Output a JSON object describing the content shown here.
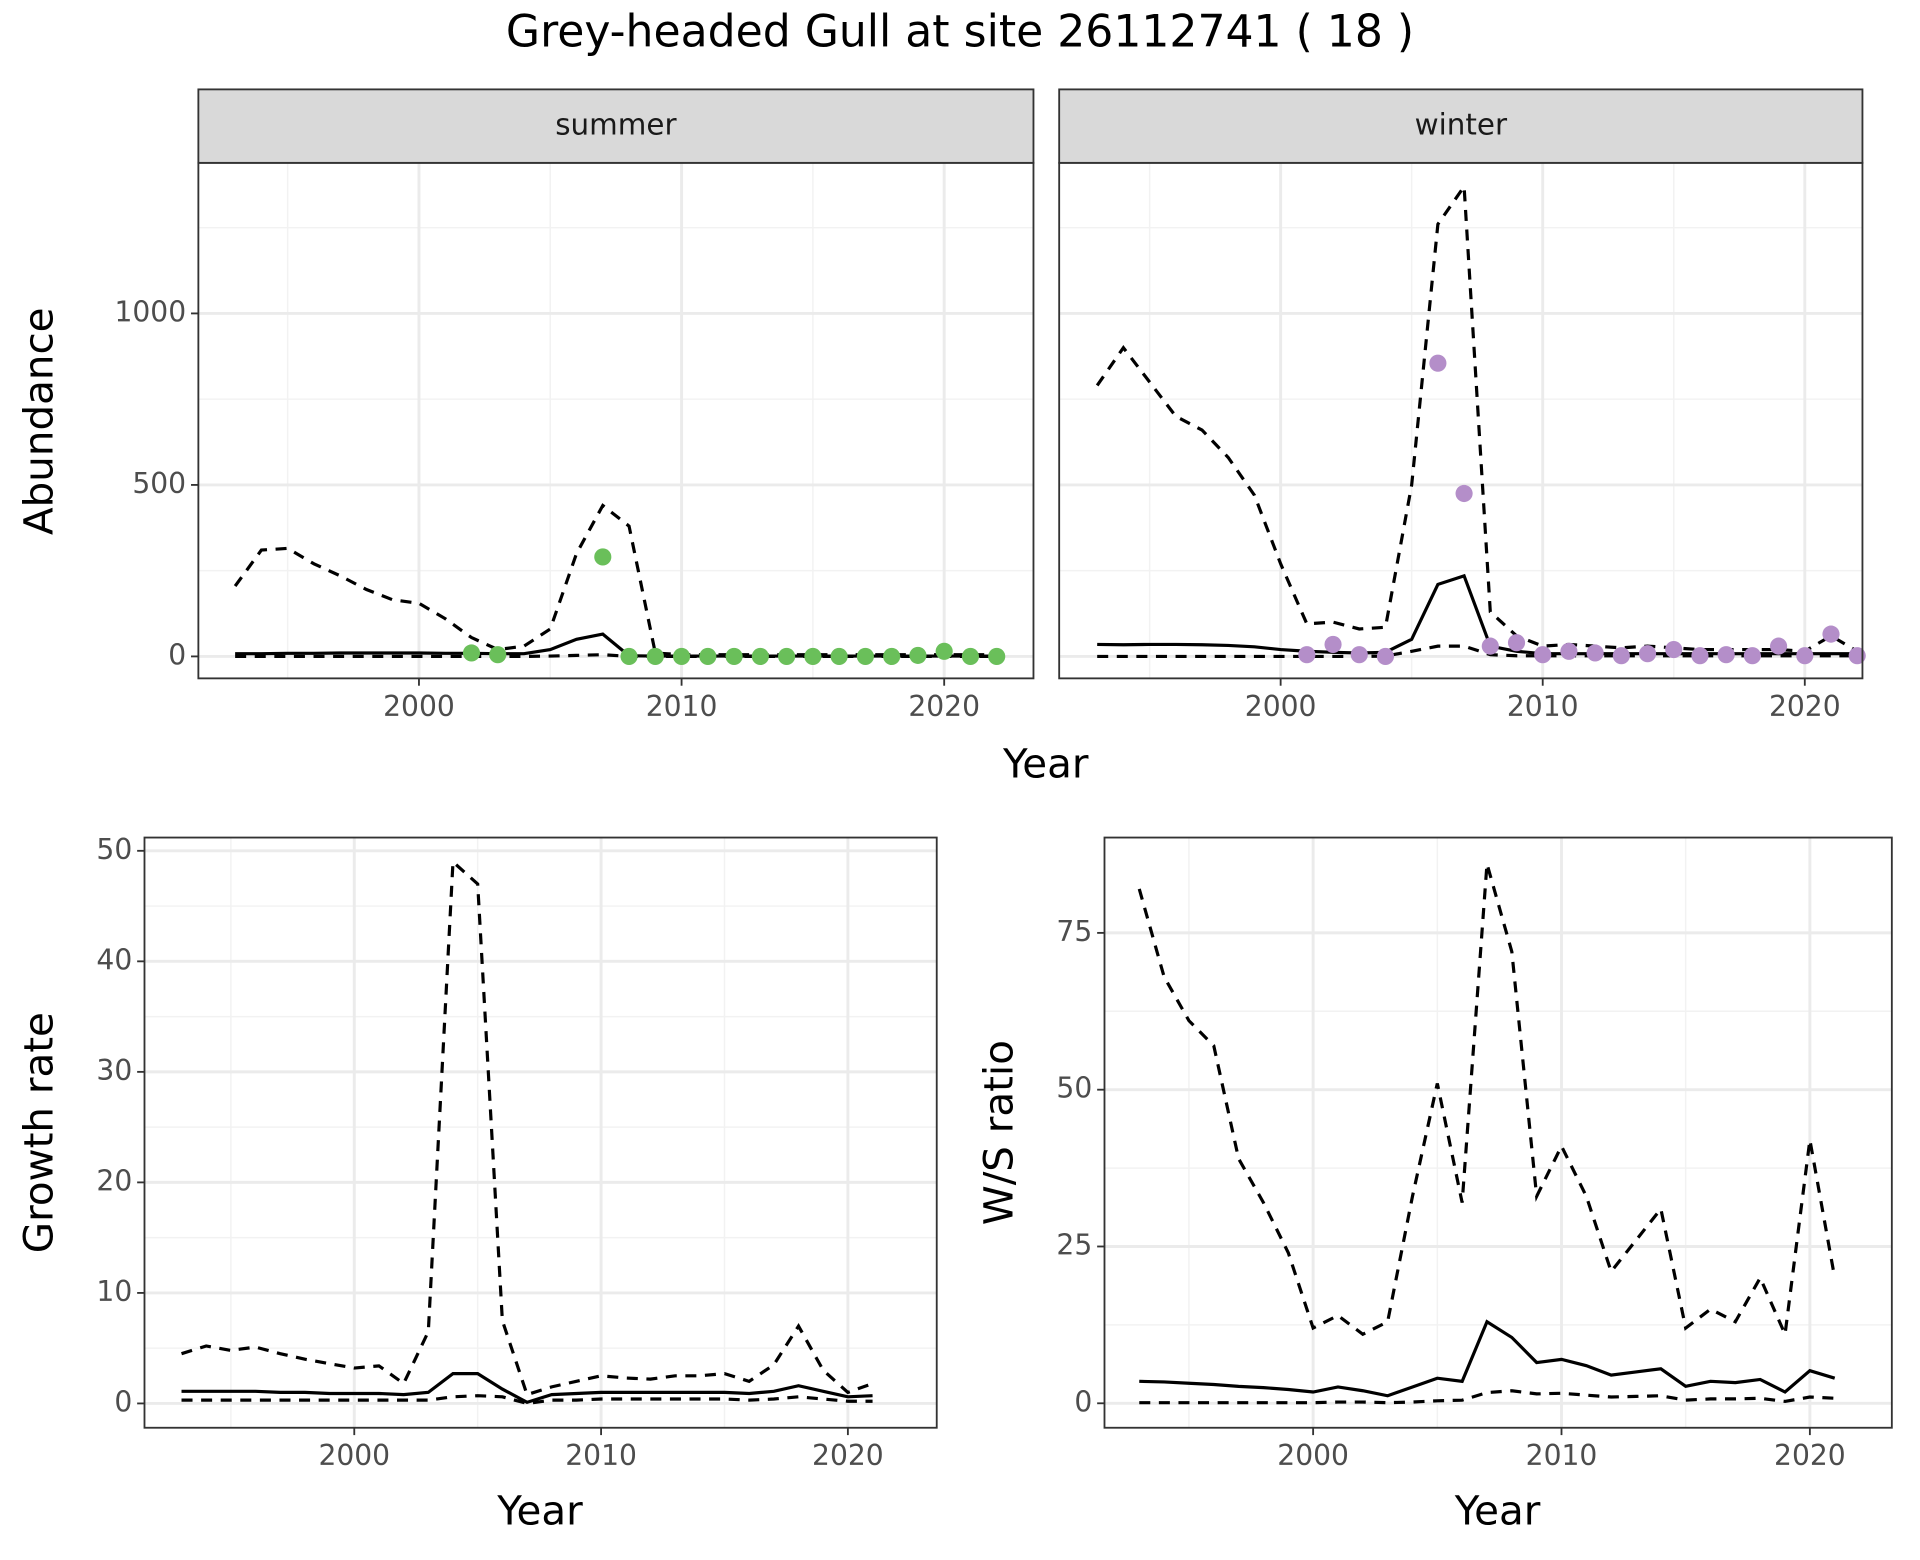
{
  "title": "Grey-headed Gull at site 26112741 ( 18 )",
  "chart_data": [
    {
      "type": "line",
      "facet": "summer",
      "y_label": "Abundance",
      "x_label": "Year",
      "xlim": [
        1991.6,
        2023.4
      ],
      "ylim": [
        -64,
        1439
      ],
      "xticks": [
        2000,
        2010,
        2020
      ],
      "yticks": [
        0,
        500,
        1000
      ],
      "xminor": [
        1995,
        2005,
        2015
      ],
      "yminor": [
        250,
        750,
        1250
      ],
      "grid": true,
      "show_yticklabels": true,
      "x": [
        1993,
        1994,
        1995,
        1996,
        1997,
        1998,
        1999,
        2000,
        2001,
        2002,
        2003,
        2004,
        2005,
        2006,
        2007,
        2008,
        2009,
        2010,
        2011,
        2012,
        2013,
        2014,
        2015,
        2016,
        2017,
        2018,
        2019,
        2020,
        2021,
        2022
      ],
      "series": [
        {
          "line_style": "dashed",
          "color": "#000000",
          "values": [
            205,
            310,
            315,
            270,
            235,
            195,
            165,
            155,
            110,
            55,
            20,
            30,
            80,
            300,
            440,
            380,
            10,
            5,
            5,
            5,
            5,
            5,
            5,
            5,
            5,
            5,
            5,
            5,
            5,
            5
          ]
        },
        {
          "line_style": "solid",
          "color": "#000000",
          "values": [
            8,
            8,
            9,
            9,
            10,
            10,
            10,
            10,
            9,
            9,
            8,
            8,
            20,
            50,
            65,
            2,
            1,
            1,
            1,
            1,
            1,
            1,
            1,
            1,
            1,
            1,
            1,
            1,
            1,
            1
          ]
        },
        {
          "line_style": "dashed",
          "color": "#000000",
          "values": [
            0,
            0,
            0,
            0,
            0,
            0,
            0,
            0,
            0,
            0,
            0,
            0,
            1,
            3,
            5,
            0,
            0,
            0,
            0,
            0,
            0,
            0,
            0,
            0,
            0,
            0,
            0,
            0,
            0,
            0
          ]
        },
        {
          "line_style": "points",
          "color": "#6abf5a",
          "values": [
            null,
            null,
            null,
            null,
            null,
            null,
            null,
            null,
            null,
            10,
            5,
            null,
            null,
            null,
            290,
            0,
            0,
            0,
            0,
            0,
            0,
            0,
            0,
            0,
            0,
            0,
            3,
            15,
            0,
            0
          ]
        }
      ]
    },
    {
      "type": "line",
      "facet": "winter",
      "xlim": [
        1991.55,
        2022.2
      ],
      "ylim": [
        -64,
        1439
      ],
      "xticks": [
        2000,
        2010,
        2020
      ],
      "yticks": [
        0,
        500,
        1000
      ],
      "xminor": [
        1995,
        2005,
        2015
      ],
      "yminor": [
        250,
        750,
        1250
      ],
      "grid": true,
      "show_yticklabels": false,
      "x": [
        1993,
        1994,
        1995,
        1996,
        1997,
        1998,
        1999,
        2000,
        2001,
        2002,
        2003,
        2004,
        2005,
        2006,
        2007,
        2008,
        2009,
        2010,
        2011,
        2012,
        2013,
        2014,
        2015,
        2016,
        2017,
        2018,
        2019,
        2020,
        2021,
        2022
      ],
      "series": [
        {
          "line_style": "dashed",
          "color": "#000000",
          "values": [
            790,
            900,
            800,
            700,
            660,
            580,
            470,
            270,
            95,
            100,
            80,
            85,
            500,
            1260,
            1370,
            130,
            60,
            30,
            35,
            30,
            25,
            30,
            25,
            20,
            20,
            20,
            20,
            15,
            60,
            15
          ]
        },
        {
          "line_style": "solid",
          "color": "#000000",
          "values": [
            35,
            34,
            35,
            35,
            34,
            32,
            28,
            20,
            15,
            12,
            10,
            12,
            50,
            210,
            235,
            30,
            15,
            8,
            8,
            8,
            8,
            8,
            8,
            8,
            8,
            8,
            8,
            8,
            8,
            8
          ]
        },
        {
          "line_style": "dashed",
          "color": "#000000",
          "values": [
            0,
            0,
            0,
            0,
            0,
            0,
            0,
            0,
            0,
            0,
            0,
            1,
            15,
            30,
            30,
            5,
            2,
            2,
            2,
            2,
            2,
            2,
            2,
            2,
            2,
            2,
            2,
            2,
            2,
            2
          ]
        },
        {
          "line_style": "points",
          "color": "#b48ec9",
          "values": [
            null,
            null,
            null,
            null,
            null,
            null,
            null,
            null,
            5,
            35,
            5,
            0,
            null,
            855,
            475,
            30,
            40,
            5,
            15,
            10,
            2,
            8,
            20,
            2,
            5,
            2,
            30,
            2,
            65,
            2
          ]
        }
      ]
    },
    {
      "type": "line",
      "y_label": "Growth rate",
      "x_label": "Year",
      "xlim": [
        1991.5,
        2023.6
      ],
      "ylim": [
        -2.2,
        51.2
      ],
      "xticks": [
        2000,
        2010,
        2020
      ],
      "yticks": [
        0,
        10,
        20,
        30,
        40,
        50
      ],
      "xminor": [
        1995,
        2005,
        2015
      ],
      "yminor": [
        5,
        15,
        25,
        35,
        45
      ],
      "grid": true,
      "show_yticklabels": true,
      "x": [
        1993,
        1994,
        1995,
        1996,
        1997,
        1998,
        1999,
        2000,
        2001,
        2002,
        2003,
        2004,
        2005,
        2006,
        2007,
        2008,
        2009,
        2010,
        2011,
        2012,
        2013,
        2014,
        2015,
        2016,
        2017,
        2018,
        2019,
        2020,
        2021
      ],
      "series": [
        {
          "line_style": "dashed",
          "color": "#000000",
          "values": [
            4.5,
            5.2,
            4.8,
            5.1,
            4.5,
            4.0,
            3.6,
            3.2,
            3.4,
            1.8,
            6.5,
            49,
            47,
            7.5,
            0.8,
            1.5,
            2.0,
            2.5,
            2.3,
            2.2,
            2.5,
            2.5,
            2.7,
            2.0,
            3.5,
            7,
            3,
            1.0,
            1.8
          ]
        },
        {
          "line_style": "solid",
          "color": "#000000",
          "values": [
            1.1,
            1.1,
            1.1,
            1.1,
            1.0,
            1.0,
            0.9,
            0.9,
            0.9,
            0.8,
            1.0,
            2.7,
            2.7,
            1.3,
            0.1,
            0.8,
            0.9,
            1.0,
            1.0,
            1.0,
            1.0,
            1.0,
            1.0,
            0.9,
            1.1,
            1.6,
            1.1,
            0.6,
            0.7
          ]
        },
        {
          "line_style": "dashed",
          "color": "#000000",
          "values": [
            0.3,
            0.3,
            0.3,
            0.3,
            0.3,
            0.3,
            0.3,
            0.3,
            0.3,
            0.3,
            0.3,
            0.6,
            0.7,
            0.6,
            0,
            0.3,
            0.3,
            0.4,
            0.4,
            0.4,
            0.4,
            0.4,
            0.4,
            0.3,
            0.4,
            0.6,
            0.4,
            0.2,
            0.2
          ]
        }
      ]
    },
    {
      "type": "line",
      "y_label": "W/S ratio",
      "x_label": "Year",
      "xlim": [
        1991.6,
        2023.3
      ],
      "ylim": [
        -3.9,
        90.2
      ],
      "xticks": [
        2000,
        2010,
        2020
      ],
      "yticks": [
        0,
        25,
        50,
        75
      ],
      "xminor": [
        1995,
        2005,
        2015
      ],
      "yminor": [
        12.5,
        37.5,
        62.5
      ],
      "grid": true,
      "show_yticklabels": true,
      "x": [
        1993,
        1994,
        1995,
        1996,
        1997,
        1998,
        1999,
        2000,
        2001,
        2002,
        2003,
        2004,
        2005,
        2006,
        2007,
        2008,
        2009,
        2010,
        2011,
        2012,
        2013,
        2014,
        2015,
        2016,
        2017,
        2018,
        2019,
        2020,
        2021
      ],
      "series": [
        {
          "line_style": "dashed",
          "color": "#000000",
          "values": [
            82,
            68,
            61,
            57,
            39,
            32,
            24,
            12,
            14,
            11,
            13,
            33,
            51,
            32,
            86,
            72,
            33,
            41,
            33,
            21,
            26,
            31,
            12,
            15,
            13,
            20,
            11,
            42,
            20
          ]
        },
        {
          "line_style": "solid",
          "color": "#000000",
          "values": [
            3.5,
            3.4,
            3.2,
            3.0,
            2.7,
            2.5,
            2.2,
            1.8,
            2.6,
            2.0,
            1.2,
            2.6,
            4.0,
            3.5,
            13,
            10.5,
            6.5,
            7.0,
            6.0,
            4.5,
            5.0,
            5.5,
            2.7,
            3.5,
            3.3,
            3.8,
            1.8,
            5.2,
            4.0
          ]
        },
        {
          "line_style": "dashed",
          "color": "#000000",
          "values": [
            0.1,
            0.1,
            0.1,
            0.1,
            0.1,
            0.1,
            0.1,
            0.1,
            0.2,
            0.2,
            0.1,
            0.2,
            0.4,
            0.5,
            1.7,
            2.0,
            1.5,
            1.6,
            1.3,
            1.0,
            1.1,
            1.2,
            0.5,
            0.7,
            0.7,
            0.8,
            0.3,
            1.0,
            0.8
          ]
        }
      ]
    }
  ]
}
